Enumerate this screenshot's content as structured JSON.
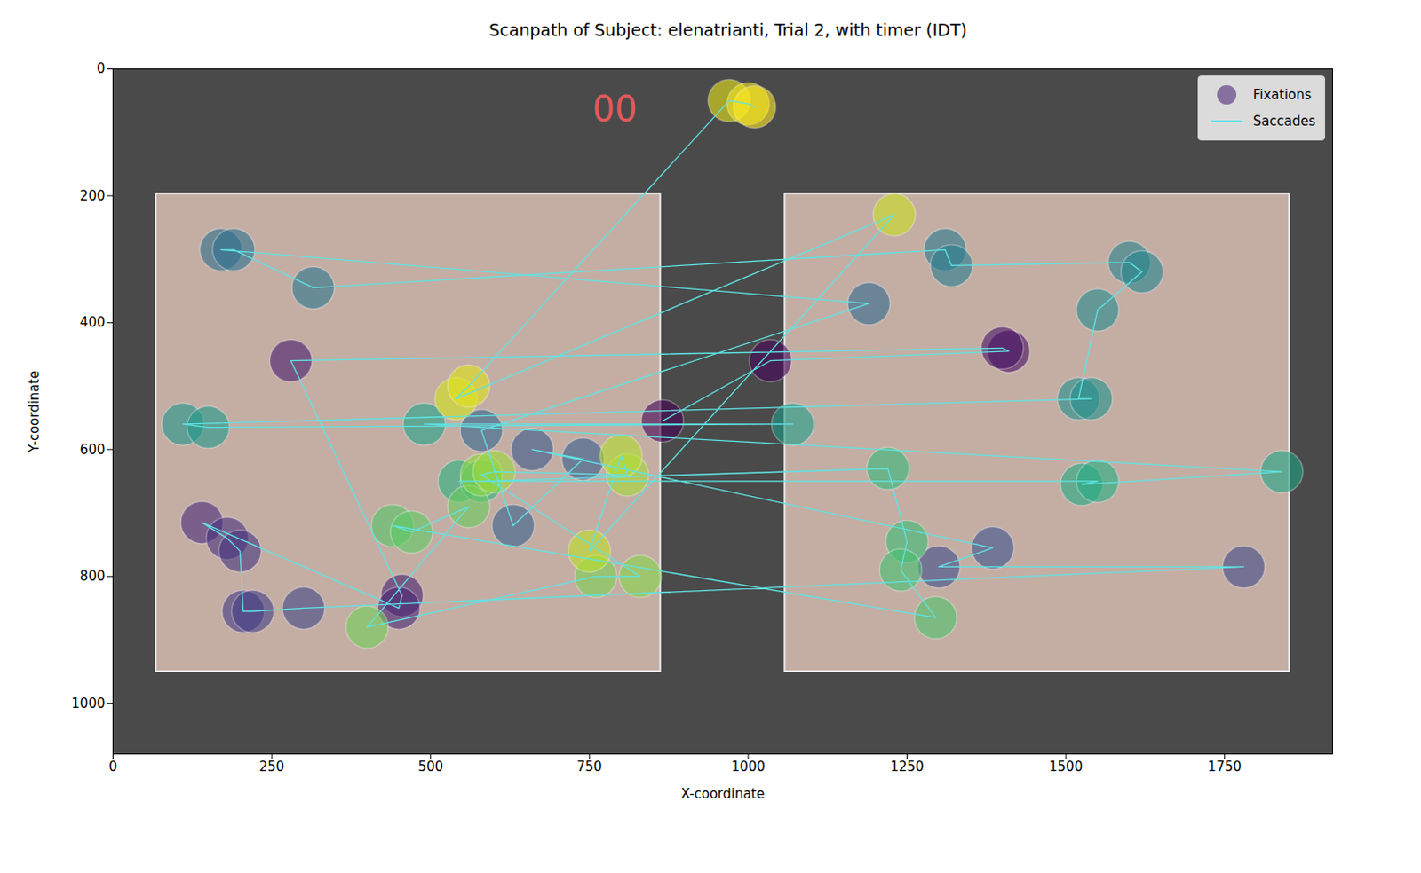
{
  "chart_data": {
    "type": "scatter",
    "title": "Scanpath of Subject: elenatrianti, Trial 2, with timer (IDT)",
    "x_label": "X-coordinate",
    "y_label": "Y-coordinate",
    "xlim": [
      0,
      1920
    ],
    "ylim": [
      1080,
      0
    ],
    "xticks": [
      0,
      250,
      500,
      750,
      1000,
      1250,
      1500,
      1750
    ],
    "yticks": [
      0,
      200,
      400,
      600,
      800,
      1000
    ],
    "legend": "upper right",
    "images": [
      {
        "x": [
          68,
          862
        ],
        "y": [
          197,
          950
        ]
      },
      {
        "x": [
          1058,
          1852
        ],
        "y": [
          197,
          950
        ]
      }
    ],
    "annotations": [
      {
        "text": "00",
        "x": 790,
        "y": 64,
        "color": "#e05a5a"
      }
    ],
    "series": [
      {
        "name": "Fixations",
        "marker": "circle",
        "x": [
          865,
          1035,
          1410,
          1400,
          280,
          455,
          450,
          140,
          180,
          200,
          205,
          220,
          300,
          1780,
          1300,
          1385,
          660,
          740,
          630,
          580,
          1190,
          170,
          190,
          315,
          1310,
          1320,
          1600,
          1620,
          1550,
          1520,
          1540,
          110,
          150,
          1070,
          490,
          1840,
          1525,
          1550,
          545,
          580,
          1220,
          1250,
          1240,
          1295,
          440,
          470,
          560,
          400,
          760,
          830,
          580,
          600,
          810,
          800,
          750,
          1230,
          540,
          560,
          970,
          1000,
          1010
        ],
        "y": [
          555,
          460,
          445,
          440,
          460,
          830,
          850,
          715,
          740,
          760,
          855,
          855,
          850,
          785,
          785,
          755,
          600,
          615,
          720,
          570,
          370,
          285,
          285,
          345,
          285,
          310,
          305,
          320,
          380,
          520,
          520,
          560,
          565,
          560,
          560,
          635,
          655,
          650,
          650,
          650,
          630,
          745,
          790,
          865,
          720,
          730,
          690,
          880,
          800,
          800,
          640,
          635,
          640,
          610,
          760,
          230,
          520,
          500,
          50,
          55,
          60
        ]
      },
      {
        "name": "Saccades",
        "color": "#5fe3e3",
        "line_style": "solid"
      }
    ]
  }
}
